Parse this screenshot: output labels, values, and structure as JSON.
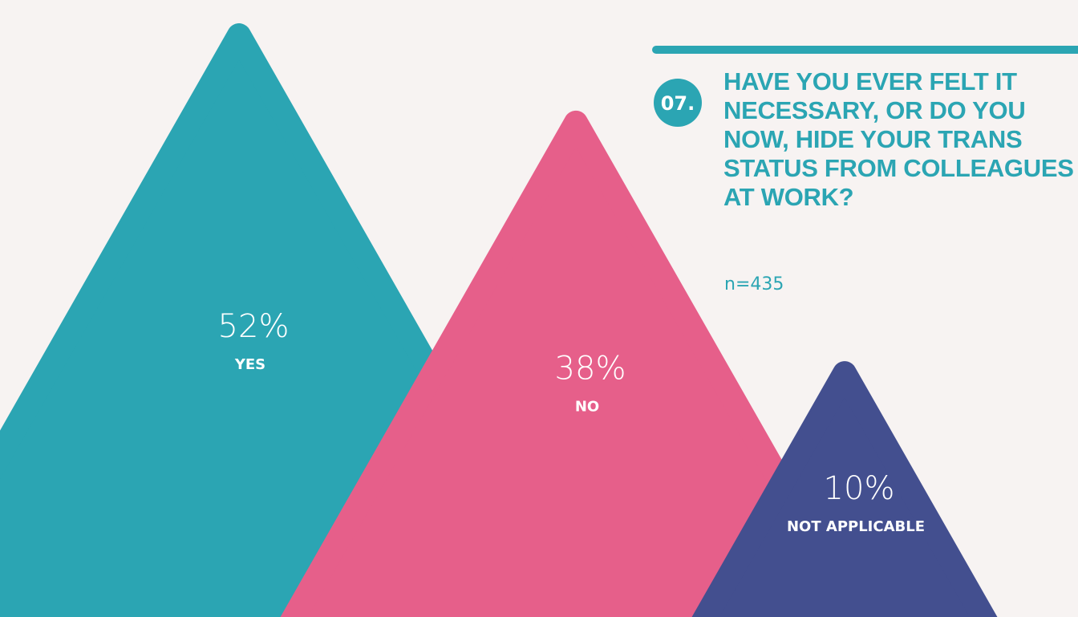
{
  "chart_data": {
    "type": "triangle",
    "badge": "07.",
    "title": "HAVE YOU EVER FELT IT NECESSARY, OR DO YOU NOW, HIDE YOUR TRANS STATUS FROM COLLEAGUES AT WORK?",
    "subtitle": "n=435",
    "categories": [
      "YES",
      "NO",
      "NOT APPLICABLE"
    ],
    "values": [
      52,
      38,
      10
    ],
    "value_labels": [
      "52%",
      "38%",
      "10%"
    ],
    "colors": [
      "#2ba5b3",
      "#e65f8a",
      "#434f8f"
    ],
    "accent_color": "#2ba5b3"
  }
}
